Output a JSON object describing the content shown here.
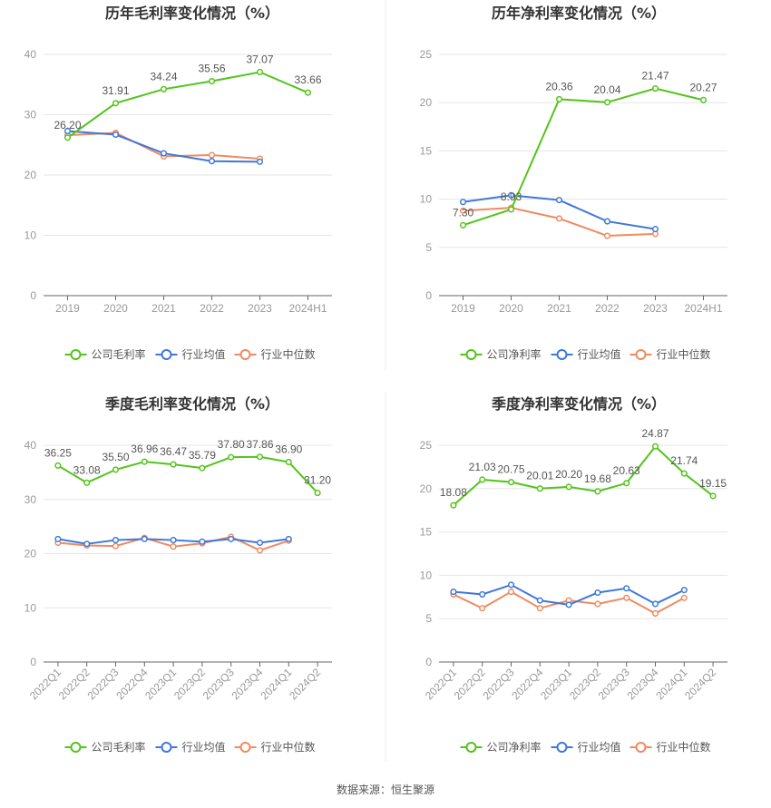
{
  "source": "数据来源：恒生聚源",
  "colors": {
    "company": "#52c41a",
    "avg": "#3f78d9",
    "median": "#f08a60"
  },
  "chart_data": [
    {
      "type": "line",
      "title": "历年毛利率变化情况（%）",
      "categories": [
        "2019",
        "2020",
        "2021",
        "2022",
        "2023",
        "2024H1"
      ],
      "ylim": [
        0,
        40
      ],
      "yticks": [
        0,
        10,
        20,
        30,
        40
      ],
      "legend_position": "bottom",
      "series": [
        {
          "name": "公司毛利率",
          "role": "company",
          "values": [
            26.2,
            31.91,
            34.24,
            35.56,
            37.07,
            33.66
          ],
          "labels": [
            "26.20",
            "31.91",
            "34.24",
            "35.56",
            "37.07",
            "33.66"
          ]
        },
        {
          "name": "行业均值",
          "role": "avg",
          "values": [
            27.3,
            26.7,
            23.6,
            22.3,
            22.2,
            null
          ]
        },
        {
          "name": "行业中位数",
          "role": "median",
          "values": [
            26.6,
            27.0,
            23.1,
            23.3,
            22.7,
            null
          ]
        }
      ]
    },
    {
      "type": "line",
      "title": "历年净利率变化情况（%）",
      "categories": [
        "2019",
        "2020",
        "2021",
        "2022",
        "2023",
        "2024H1"
      ],
      "ylim": [
        0,
        25
      ],
      "yticks": [
        0,
        5,
        10,
        15,
        20,
        25
      ],
      "legend_position": "bottom",
      "series": [
        {
          "name": "公司净利率",
          "role": "company",
          "values": [
            7.3,
            8.93,
            20.36,
            20.04,
            21.47,
            20.27
          ],
          "labels": [
            "7.30",
            "8.93",
            "20.36",
            "20.04",
            "21.47",
            "20.27"
          ]
        },
        {
          "name": "行业均值",
          "role": "avg",
          "values": [
            9.7,
            10.4,
            9.9,
            7.7,
            6.9,
            null
          ]
        },
        {
          "name": "行业中位数",
          "role": "median",
          "values": [
            8.8,
            9.1,
            8.0,
            6.2,
            6.4,
            null
          ]
        }
      ]
    },
    {
      "type": "line",
      "title": "季度毛利率变化情况（%）",
      "categories": [
        "2022Q1",
        "2022Q2",
        "2022Q3",
        "2022Q4",
        "2023Q1",
        "2023Q2",
        "2023Q3",
        "2023Q4",
        "2024Q1",
        "2024Q2"
      ],
      "ylim": [
        0,
        40
      ],
      "yticks": [
        0,
        10,
        20,
        30,
        40
      ],
      "legend_position": "bottom",
      "series": [
        {
          "name": "公司毛利率",
          "role": "company",
          "values": [
            36.25,
            33.08,
            35.5,
            36.96,
            36.47,
            35.79,
            37.8,
            37.86,
            36.9,
            31.2
          ],
          "labels": [
            "36.25",
            "33.08",
            "35.50",
            "36.96",
            "36.47",
            "35.79",
            "37.80",
            "37.86",
            "36.90",
            "31.20"
          ]
        },
        {
          "name": "行业均值",
          "role": "avg",
          "values": [
            22.7,
            21.8,
            22.5,
            22.7,
            22.5,
            22.2,
            22.7,
            22.0,
            22.7,
            null
          ]
        },
        {
          "name": "行业中位数",
          "role": "median",
          "values": [
            22.0,
            21.5,
            21.4,
            22.9,
            21.3,
            21.9,
            23.1,
            20.6,
            22.4,
            null
          ]
        }
      ]
    },
    {
      "type": "line",
      "title": "季度净利率变化情况（%）",
      "categories": [
        "2022Q1",
        "2022Q2",
        "2022Q3",
        "2022Q4",
        "2023Q1",
        "2023Q2",
        "2023Q3",
        "2023Q4",
        "2024Q1",
        "2024Q2"
      ],
      "ylim": [
        0,
        25
      ],
      "yticks": [
        0,
        5,
        10,
        15,
        20,
        25
      ],
      "legend_position": "bottom",
      "series": [
        {
          "name": "公司净利率",
          "role": "company",
          "values": [
            18.08,
            21.03,
            20.75,
            20.01,
            20.2,
            19.68,
            20.63,
            24.87,
            21.74,
            19.15
          ],
          "labels": [
            "18.08",
            "21.03",
            "20.75",
            "20.01",
            "20.20",
            "19.68",
            "20.63",
            "24.87",
            "21.74",
            "19.15"
          ]
        },
        {
          "name": "行业均值",
          "role": "avg",
          "values": [
            8.1,
            7.8,
            8.9,
            7.1,
            6.6,
            8.0,
            8.5,
            6.7,
            8.3,
            null
          ]
        },
        {
          "name": "行业中位数",
          "role": "median",
          "values": [
            7.8,
            6.2,
            8.1,
            6.2,
            7.1,
            6.7,
            7.4,
            5.6,
            7.4,
            null
          ]
        }
      ]
    }
  ]
}
